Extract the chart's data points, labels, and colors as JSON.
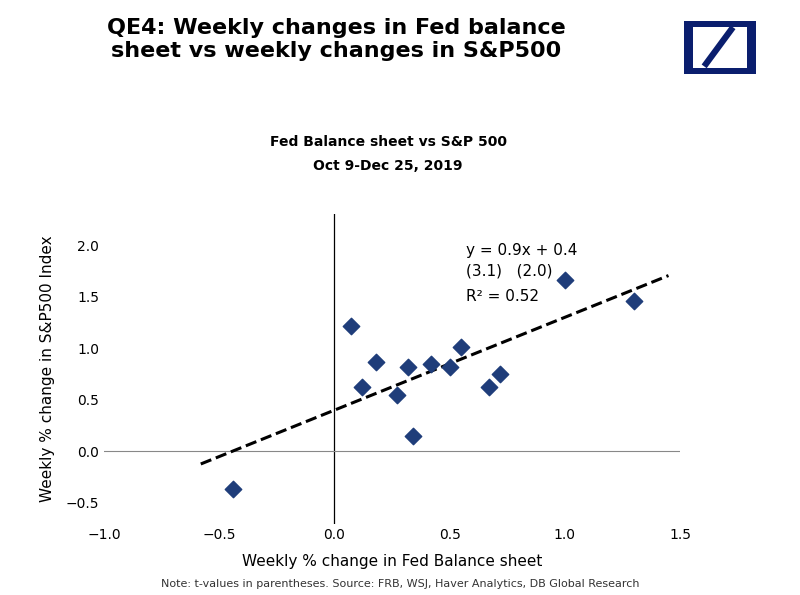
{
  "title": "QE4: Weekly changes in Fed balance\nsheet vs weekly changes in S&P500",
  "subtitle1": "Fed Balance sheet vs S&P 500",
  "subtitle2": "Oct 9-Dec 25, 2019",
  "xlabel": "Weekly % change in Fed Balance sheet",
  "ylabel": "Weekly % change in S&P500 Index",
  "note": "Note: t-values in parentheses. Source: FRB, WSJ, Haver Analytics, DB Global Research",
  "scatter_x": [
    -0.44,
    0.07,
    0.12,
    0.18,
    0.27,
    0.32,
    0.34,
    0.42,
    0.5,
    0.55,
    0.67,
    0.72,
    1.0,
    1.3
  ],
  "scatter_y": [
    -0.36,
    1.22,
    0.62,
    0.87,
    0.55,
    0.82,
    0.15,
    0.85,
    0.82,
    1.01,
    0.62,
    0.75,
    1.66,
    1.46
  ],
  "line_x_start": -0.58,
  "line_x_end": 1.45,
  "line_slope": 0.9,
  "line_intercept": 0.4,
  "equation_text": "y = 0.9x + 0.4",
  "tvalues_text": "(3.1)   (2.0)",
  "r2_text": "R² = 0.52",
  "marker_color": "#1F3D7A",
  "line_color": "#000000",
  "xlim": [
    -1.0,
    1.5
  ],
  "ylim": [
    -0.7,
    2.3
  ],
  "xticks": [
    -1.0,
    -0.5,
    0.0,
    0.5,
    1.0,
    1.5
  ],
  "yticks": [
    -0.5,
    0.0,
    0.5,
    1.0,
    1.5,
    2.0
  ],
  "db_border_color": "#0a1e6e",
  "db_slash_color": "#0a1e6e",
  "bg_color": "#ffffff",
  "title_fontsize": 16,
  "subtitle_fontsize": 10,
  "label_fontsize": 11,
  "tick_fontsize": 10,
  "annot_fontsize": 11,
  "note_fontsize": 8
}
